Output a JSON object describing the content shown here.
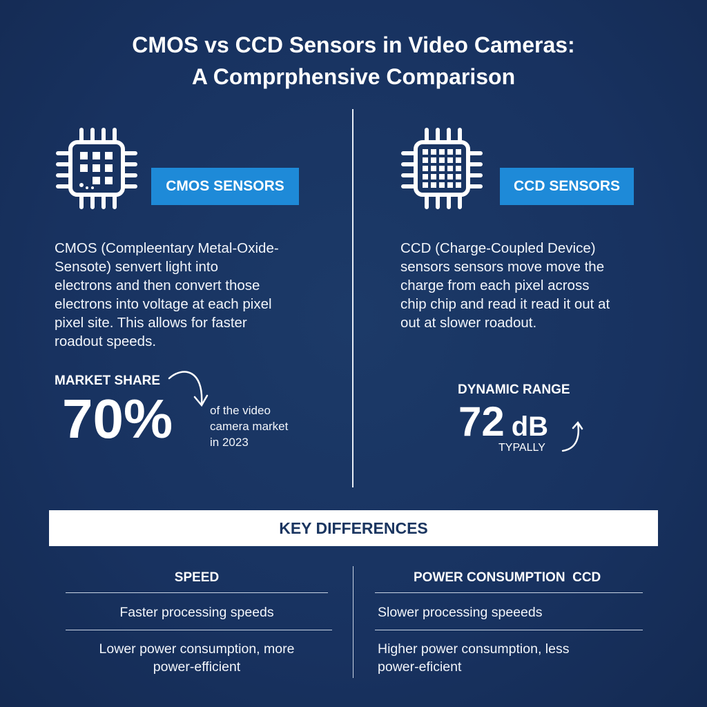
{
  "title": {
    "line1": "CMOS vs CCD Sensors in Video Cameras:",
    "line2": "A Comprphensive Comparison"
  },
  "cmos": {
    "icon": "cpu-chip-icon",
    "label": "CMOS SENSORS",
    "description": "CMOS (Compleentary Metal-Oxide-\nSensote) senvert light into\nelectrons and then convert those\nelectrons into voltage at each pixel\n pixel site. This allows for faster\nroadout speeds.",
    "stat_heading": "MARKET SHARE",
    "stat_value": "70%",
    "stat_caption": "of the video\ncamera market\nin 2023"
  },
  "ccd": {
    "icon": "cpu-chip-icon",
    "label": "CCD SENSORS",
    "description": "CCD (Charge-Coupled Device)\nsensors sensors move move the\ncharge from each pixel across\nchip chip and read it read it out at\nout at slower roadout.",
    "stat_heading": "DYNAMIC RANGE",
    "stat_value": "72",
    "stat_unit": "dB",
    "stat_caption": "TYPALLY"
  },
  "key": {
    "heading": "KEY DIFFERENCES",
    "left": {
      "header": "SPEED",
      "rows": [
        "Faster processing speeds",
        "Lower power consumption, more\npower-efficient"
      ]
    },
    "right": {
      "header": "POWER CONSUMPTION  CCD",
      "rows": [
        "Slower processing speeeds",
        "Higher power consumption, less\npower-eficient"
      ]
    }
  },
  "colors": {
    "background": "#183260",
    "accent": "#1e8ad8",
    "text": "#ffffff"
  }
}
